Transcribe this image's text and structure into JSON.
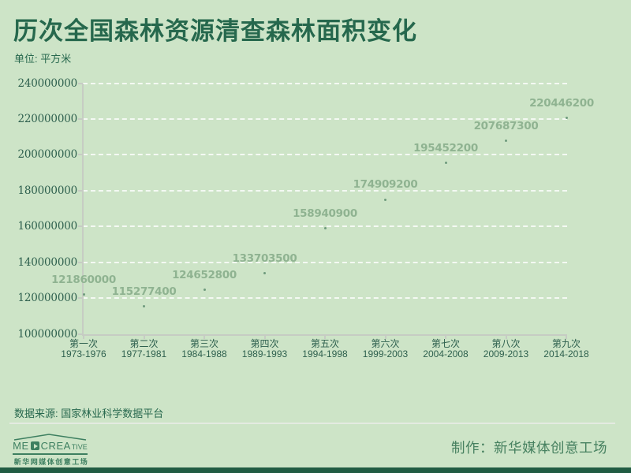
{
  "header": {
    "unit_label": "单位: 平方米"
  },
  "chart_data": {
    "type": "scatter",
    "title": "历次全国森林资源清查森林面积变化",
    "unit": "平方米",
    "categories": [
      {
        "ordinal": "第一次",
        "years": "1973-1976"
      },
      {
        "ordinal": "第二次",
        "years": "1977-1981"
      },
      {
        "ordinal": "第三次",
        "years": "1984-1988"
      },
      {
        "ordinal": "第四次",
        "years": "1989-1993"
      },
      {
        "ordinal": "第五次",
        "years": "1994-1998"
      },
      {
        "ordinal": "第六次",
        "years": "1999-2003"
      },
      {
        "ordinal": "第七次",
        "years": "2004-2008"
      },
      {
        "ordinal": "第八次",
        "years": "2009-2013"
      },
      {
        "ordinal": "第九次",
        "years": "2014-2018"
      }
    ],
    "values": [
      121860000,
      115277400,
      124652800,
      133703500,
      158940900,
      174909200,
      195452200,
      207687300,
      220446200
    ],
    "ylim": [
      100000000,
      240000000
    ],
    "ytick_step": 20000000,
    "xlabel": "",
    "ylabel": "",
    "grid": "horizontal-white-dashed",
    "legend": "none",
    "point_labels_visible": true
  },
  "footer": {
    "source_label": "数据来源: 国家林业科学数据平台",
    "credit_label": "制作：新华媒体创意工场"
  },
  "logo": {
    "brand_left": "ME",
    "brand_right_large": "CREA",
    "brand_right_small": "TIVE",
    "subtext": "新华网媒体创意工场"
  },
  "colors": {
    "background": "#cde4c7",
    "title_text": "#26684d",
    "axis_text": "#2e604e",
    "point_label": "#8fb391",
    "point_dot": "#6f9b7d",
    "gridline": "#ffffff",
    "axis_line": "#c6ccc3",
    "divider": "#e4eae1",
    "footer_bar": "#215c43",
    "logo_green": "#3d7f60",
    "credit_text": "#478160"
  }
}
